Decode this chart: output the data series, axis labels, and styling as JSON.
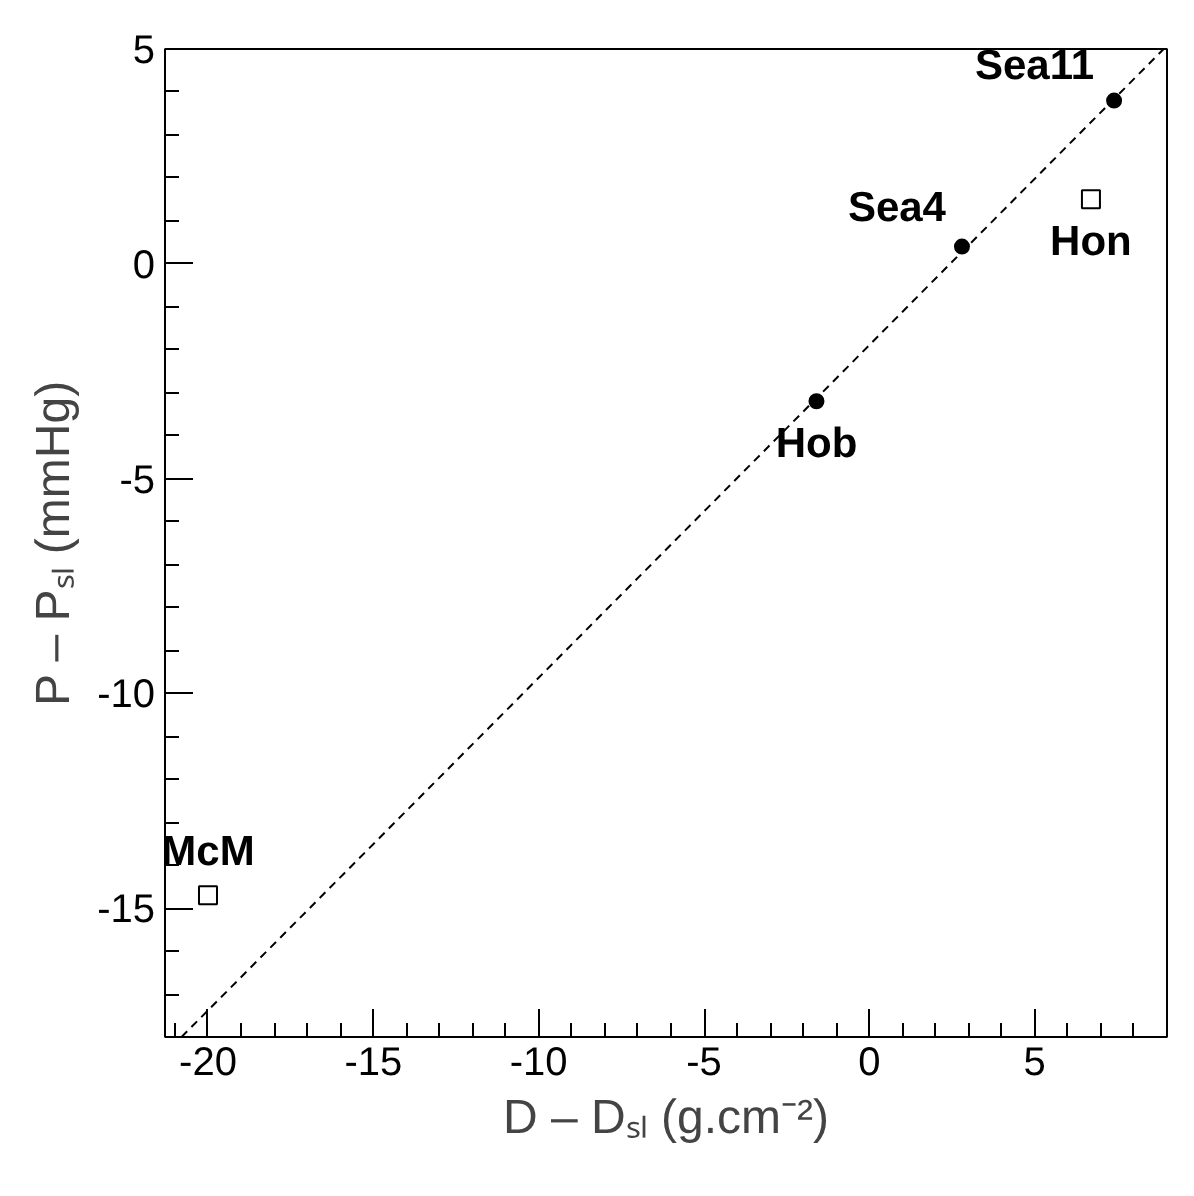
{
  "chart_data": {
    "type": "scatter",
    "xlabel": "D – Dₛₗ (g.cm⁻²)",
    "ylabel": "P – Pₛₗ (mmHg)",
    "xlim": [
      -21.3,
      9
    ],
    "ylim": [
      -18,
      5
    ],
    "xticks": [
      -20,
      -15,
      -10,
      -5,
      0,
      5
    ],
    "yticks": [
      -15,
      -10,
      -5,
      0,
      5
    ],
    "grid": false,
    "series": [
      {
        "marker": "circle",
        "color": "#000000",
        "x": [
          7.4,
          2.8,
          -1.6
        ],
        "values": [
          3.8,
          0.4,
          -3.2
        ]
      },
      {
        "marker": "square",
        "color": "#000000",
        "x": [
          6.7,
          -20
        ],
        "values": [
          1.5,
          -14.7
        ]
      },
      {
        "type": "line",
        "line_style": "dashed",
        "color": "#000000",
        "x": [
          -20.8,
          8.9
        ],
        "values": [
          -18,
          5
        ]
      }
    ],
    "annotations": [
      {
        "text": "Sea11",
        "x": 7.4,
        "y": 3.8
      },
      {
        "text": "Sea4",
        "x": 2.8,
        "y": 0.4
      },
      {
        "text": "Hob",
        "x": -1.6,
        "y": -3.2
      },
      {
        "text": "Hon",
        "x": 6.7,
        "y": 1.5
      },
      {
        "text": "McM",
        "x": -20,
        "y": -14.7
      }
    ]
  }
}
